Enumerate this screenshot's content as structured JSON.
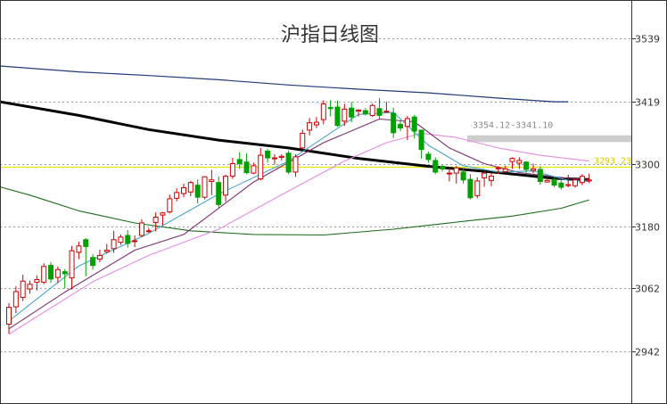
{
  "chart_data": {
    "type": "candlestick",
    "title": "沪指日线图",
    "ylim": [
      2880,
      3590
    ],
    "y_ticks": [
      3539,
      3419,
      3300,
      3180,
      3062,
      2942
    ],
    "grid": true,
    "colors": {
      "up": "#d00000",
      "down": "#00a000",
      "ma5": "#4aa6c8",
      "ma10": "#7a2f6f",
      "ma20": "#e58be5",
      "ma60": "#1a6e1a",
      "ma120": "#000000",
      "ma250": "#1f3b7a",
      "price_line": "#e8e800",
      "band": "#c8c8c8"
    },
    "candles": [
      [
        2994,
        3026,
        2976,
        3034
      ],
      [
        3027,
        3056,
        3015,
        3066
      ],
      [
        3045,
        3076,
        3038,
        3088
      ],
      [
        3061,
        3070,
        3052,
        3077
      ],
      [
        3074,
        3079,
        3058,
        3087
      ],
      [
        3074,
        3104,
        3070,
        3110
      ],
      [
        3106,
        3080,
        3073,
        3112
      ],
      [
        3083,
        3098,
        3072,
        3104
      ],
      [
        3094,
        3090,
        3062,
        3099
      ],
      [
        3082,
        3134,
        3060,
        3143
      ],
      [
        3131,
        3143,
        3118,
        3151
      ],
      [
        3155,
        3142,
        3085,
        3158
      ],
      [
        3121,
        3106,
        3098,
        3127
      ],
      [
        3118,
        3125,
        3112,
        3136
      ],
      [
        3132,
        3135,
        3129,
        3147
      ],
      [
        3138,
        3155,
        3130,
        3172
      ],
      [
        3150,
        3160,
        3145,
        3165
      ],
      [
        3163,
        3148,
        3140,
        3173
      ],
      [
        3152,
        3153,
        3141,
        3163
      ],
      [
        3163,
        3187,
        3160,
        3194
      ],
      [
        3172,
        3172,
        3168,
        3177
      ],
      [
        3188,
        3198,
        3171,
        3207
      ],
      [
        3202,
        3206,
        3182,
        3208
      ],
      [
        3208,
        3233,
        3205,
        3241
      ],
      [
        3234,
        3245,
        3228,
        3253
      ],
      [
        3243,
        3254,
        3236,
        3262
      ],
      [
        3246,
        3264,
        3238,
        3267
      ],
      [
        3259,
        3236,
        3224,
        3270
      ],
      [
        3236,
        3275,
        3232,
        3276
      ],
      [
        3266,
        3269,
        3240,
        3288
      ],
      [
        3264,
        3222,
        3216,
        3276
      ],
      [
        3240,
        3276,
        3228,
        3279
      ],
      [
        3276,
        3300,
        3271,
        3311
      ],
      [
        3308,
        3300,
        3290,
        3322
      ],
      [
        3303,
        3283,
        3280,
        3320
      ],
      [
        3282,
        3296,
        3280,
        3302
      ],
      [
        3271,
        3316,
        3268,
        3330
      ],
      [
        3324,
        3311,
        3302,
        3328
      ],
      [
        3310,
        3311,
        3298,
        3318
      ],
      [
        3312,
        3314,
        3306,
        3318
      ],
      [
        3320,
        3284,
        3280,
        3325
      ],
      [
        3284,
        3313,
        3275,
        3318
      ],
      [
        3330,
        3358,
        3325,
        3365
      ],
      [
        3364,
        3378,
        3354,
        3387
      ],
      [
        3374,
        3379,
        3368,
        3389
      ],
      [
        3384,
        3414,
        3375,
        3421
      ],
      [
        3407,
        3405,
        3390,
        3421
      ],
      [
        3408,
        3373,
        3370,
        3420
      ],
      [
        3381,
        3404,
        3372,
        3414
      ],
      [
        3406,
        3389,
        3379,
        3418
      ],
      [
        3400,
        3402,
        3390,
        3404
      ],
      [
        3401,
        3395,
        3392,
        3406
      ],
      [
        3392,
        3411,
        3389,
        3415
      ],
      [
        3405,
        3392,
        3386,
        3425
      ],
      [
        3400,
        3400,
        3398,
        3418
      ],
      [
        3396,
        3359,
        3349,
        3407
      ],
      [
        3375,
        3368,
        3362,
        3382
      ],
      [
        3371,
        3386,
        3345,
        3391
      ],
      [
        3389,
        3362,
        3348,
        3393
      ],
      [
        3364,
        3327,
        3310,
        3364
      ],
      [
        3318,
        3308,
        3302,
        3323
      ],
      [
        3306,
        3284,
        3280,
        3312
      ],
      [
        3295,
        3290,
        3285,
        3297
      ],
      [
        3281,
        3282,
        3266,
        3293
      ],
      [
        3282,
        3292,
        3262,
        3296
      ],
      [
        3284,
        3269,
        3262,
        3290
      ],
      [
        3270,
        3235,
        3232,
        3280
      ],
      [
        3239,
        3267,
        3234,
        3274
      ],
      [
        3273,
        3282,
        3256,
        3286
      ],
      [
        3268,
        3276,
        3257,
        3283
      ],
      [
        3292,
        3292,
        3280,
        3295
      ],
      [
        3285,
        3290,
        3284,
        3296
      ],
      [
        3304,
        3310,
        3290,
        3312
      ],
      [
        3301,
        3306,
        3290,
        3312
      ],
      [
        3303,
        3289,
        3283,
        3305
      ],
      [
        3287,
        3290,
        3282,
        3300
      ],
      [
        3289,
        3266,
        3260,
        3295
      ],
      [
        3265,
        3268,
        3264,
        3278
      ],
      [
        3270,
        3259,
        3255,
        3275
      ],
      [
        3263,
        3255,
        3251,
        3268
      ],
      [
        3260,
        3260,
        3255,
        3279
      ],
      [
        3258,
        3269,
        3254,
        3272
      ],
      [
        3264,
        3276,
        3259,
        3280
      ],
      [
        3267,
        3269,
        3263,
        3281
      ]
    ],
    "ma_lines": {
      "ma5": [
        [
          0,
          3000
        ],
        [
          10,
          3105
        ],
        [
          20,
          3167
        ],
        [
          30,
          3242
        ],
        [
          40,
          3305
        ],
        [
          50,
          3394
        ],
        [
          55,
          3398
        ],
        [
          60,
          3335
        ],
        [
          65,
          3296
        ],
        [
          70,
          3284
        ],
        [
          75,
          3286
        ],
        [
          80,
          3268
        ],
        [
          83,
          3266
        ]
      ],
      "ma10": [
        [
          0,
          2985
        ],
        [
          8,
          3055
        ],
        [
          18,
          3135
        ],
        [
          25,
          3165
        ],
        [
          35,
          3265
        ],
        [
          45,
          3340
        ],
        [
          53,
          3385
        ],
        [
          58,
          3380
        ],
        [
          63,
          3330
        ],
        [
          68,
          3300
        ],
        [
          73,
          3283
        ],
        [
          80,
          3272
        ],
        [
          83,
          3270
        ]
      ],
      "ma20": [
        [
          0,
          2975
        ],
        [
          12,
          3075
        ],
        [
          20,
          3125
        ],
        [
          30,
          3175
        ],
        [
          40,
          3248
        ],
        [
          48,
          3305
        ],
        [
          54,
          3340
        ],
        [
          59,
          3358
        ],
        [
          64,
          3350
        ],
        [
          70,
          3330
        ],
        [
          76,
          3316
        ],
        [
          83,
          3305
        ]
      ],
      "ma60": [
        [
          -3,
          3262
        ],
        [
          3,
          3240
        ],
        [
          10,
          3210
        ],
        [
          18,
          3187
        ],
        [
          26,
          3172
        ],
        [
          35,
          3165
        ],
        [
          45,
          3164
        ],
        [
          55,
          3175
        ],
        [
          65,
          3190
        ],
        [
          72,
          3200
        ],
        [
          79,
          3215
        ],
        [
          83,
          3231
        ]
      ],
      "ma120": [
        [
          -3,
          3422
        ],
        [
          10,
          3392
        ],
        [
          20,
          3365
        ],
        [
          30,
          3345
        ],
        [
          40,
          3330
        ],
        [
          50,
          3310
        ],
        [
          60,
          3295
        ],
        [
          70,
          3283
        ],
        [
          78,
          3272
        ],
        [
          83,
          3270
        ]
      ],
      "ma250": [
        [
          -3,
          3488
        ],
        [
          10,
          3475
        ],
        [
          20,
          3468
        ],
        [
          30,
          3460
        ],
        [
          40,
          3450
        ],
        [
          50,
          3442
        ],
        [
          60,
          3435
        ],
        [
          70,
          3425
        ],
        [
          78,
          3418
        ],
        [
          80,
          3418
        ]
      ]
    },
    "annotations": [
      {
        "text": "3354.12-3341.10",
        "band": [
          3341.1,
          3354.12
        ]
      },
      {
        "text": "3293.23",
        "value": 3293.23
      }
    ]
  }
}
